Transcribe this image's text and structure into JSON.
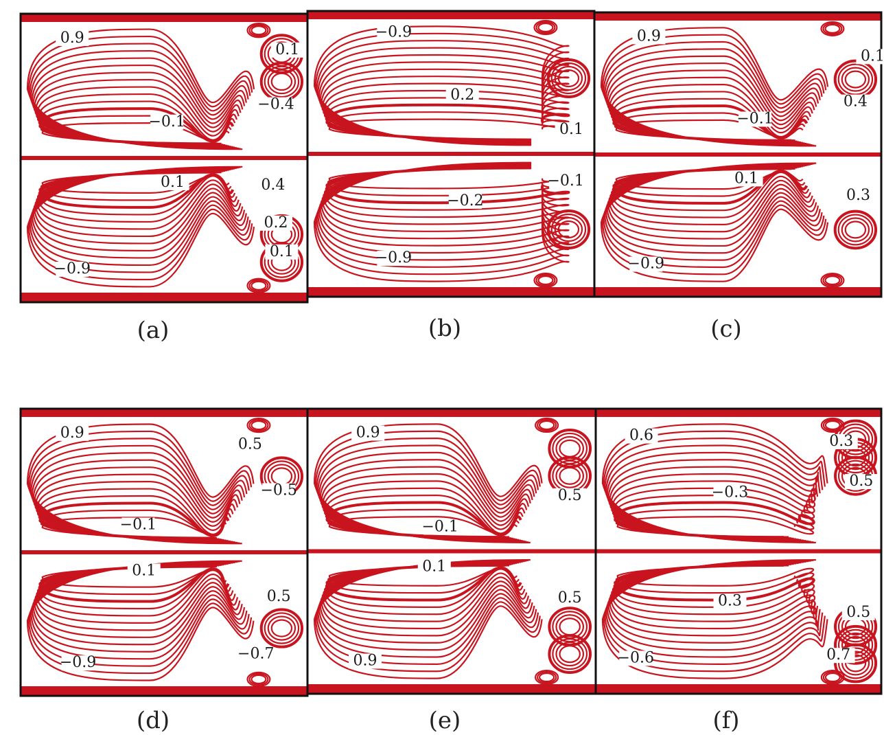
{
  "colors": {
    "streamline": "#c8141e",
    "frame": "#111111",
    "background": "#ffffff"
  },
  "panels": [
    {
      "caption": "(a)",
      "labels": [
        "0.9",
        "−0.1",
        "0.1",
        "−0.9",
        "0.1",
        "−0.4",
        "0.4",
        "0.2",
        "0.1"
      ]
    },
    {
      "caption": "(b)",
      "labels": [
        "−0.9",
        "0.2",
        "0.1",
        "−0.2",
        "−0.1",
        "−0.9"
      ]
    },
    {
      "caption": "(c)",
      "labels": [
        "0.9",
        "−0.1",
        "0.1",
        "−0.9",
        "0.1",
        "0.4",
        "0.3"
      ]
    },
    {
      "caption": "(d)",
      "labels": [
        "0.9",
        "−0.1",
        "0.1",
        "−0.9",
        "0.5",
        "−0.5",
        "0.5",
        "−0.7"
      ]
    },
    {
      "caption": "(e)",
      "labels": [
        "0.9",
        "−0.1",
        "0.1",
        "0.9",
        "0.5",
        "0.5"
      ]
    },
    {
      "caption": "(f)",
      "labels": [
        "0.6",
        "−0.3",
        "0.3",
        "−0.6",
        "0.3",
        "0.5",
        "0.5",
        "0.7"
      ]
    }
  ]
}
